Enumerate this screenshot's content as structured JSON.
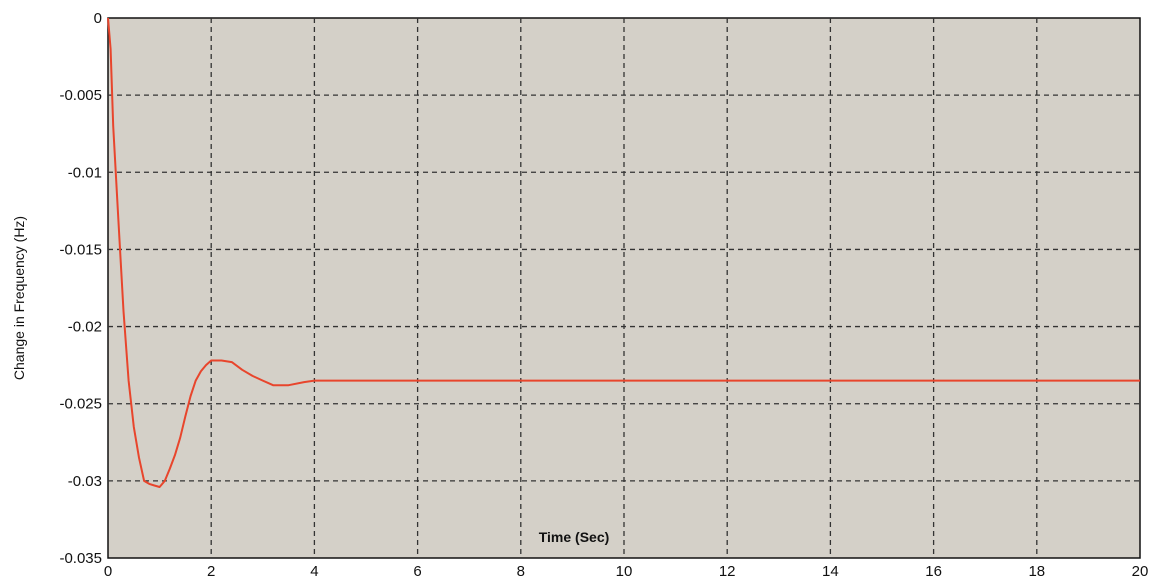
{
  "chart_data": {
    "type": "line",
    "title": "",
    "xlabel": "Time (Sec)",
    "ylabel": "Change in Frequency (Hz)",
    "xlim": [
      0,
      20
    ],
    "ylim": [
      -0.035,
      0
    ],
    "xticks": [
      0,
      2,
      4,
      6,
      8,
      10,
      12,
      14,
      16,
      18,
      20
    ],
    "xtick_labels": [
      "0",
      "2",
      "4",
      "6",
      "8",
      "10",
      "12",
      "14",
      "16",
      "18",
      "20"
    ],
    "yticks": [
      0,
      -0.005,
      -0.01,
      -0.015,
      -0.02,
      -0.025,
      -0.03,
      -0.035
    ],
    "ytick_labels": [
      "0",
      "-0.005",
      "-0.01",
      "-0.015",
      "-0.02",
      "-0.025",
      "-0.03",
      "-0.035"
    ],
    "grid": true,
    "colors": {
      "plot_background": "#d4d0c8",
      "grid": "#333333",
      "line": "#e8452c"
    },
    "series": [
      {
        "x": [
          0,
          0.05,
          0.1,
          0.2,
          0.3,
          0.4,
          0.5,
          0.6,
          0.7,
          0.8,
          0.9,
          1.0,
          1.1,
          1.2,
          1.3,
          1.4,
          1.5,
          1.6,
          1.7,
          1.8,
          1.9,
          2.0,
          2.2,
          2.4,
          2.6,
          2.8,
          3.0,
          3.2,
          3.5,
          3.8,
          4.0,
          4.5,
          5.0,
          6.0,
          8.0,
          10.0,
          12.0,
          14.0,
          16.0,
          18.0,
          20.0
        ],
        "y": [
          0,
          -0.002,
          -0.007,
          -0.013,
          -0.019,
          -0.0235,
          -0.0265,
          -0.0285,
          -0.03,
          -0.0302,
          -0.0303,
          -0.0304,
          -0.03,
          -0.0292,
          -0.0283,
          -0.0272,
          -0.0258,
          -0.0245,
          -0.0235,
          -0.0229,
          -0.0225,
          -0.0222,
          -0.0222,
          -0.0223,
          -0.0228,
          -0.0232,
          -0.0235,
          -0.0238,
          -0.0238,
          -0.0236,
          -0.0235,
          -0.0235,
          -0.0235,
          -0.0235,
          -0.0235,
          -0.0235,
          -0.0235,
          -0.0235,
          -0.0235,
          -0.0235,
          -0.0235
        ]
      }
    ]
  }
}
